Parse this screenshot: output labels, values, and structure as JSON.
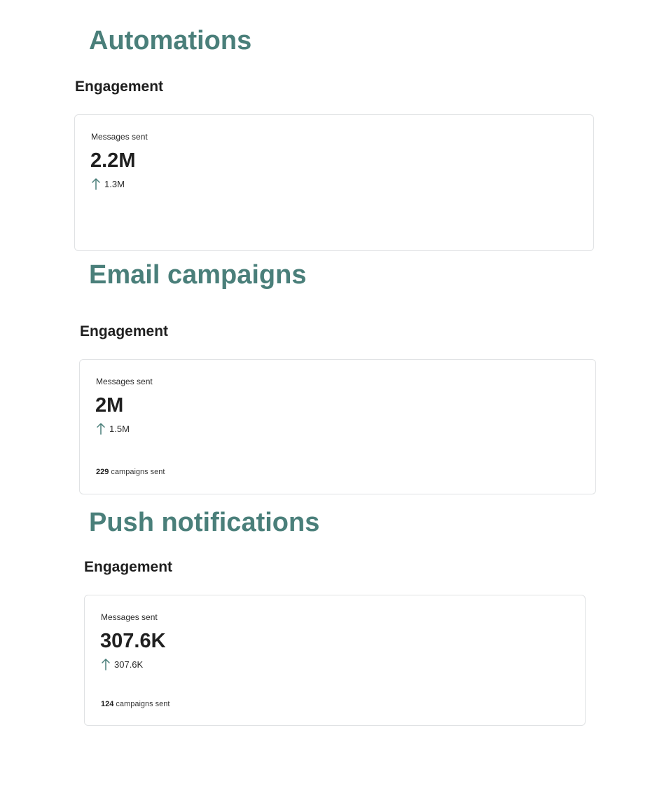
{
  "sections": [
    {
      "title": "Automations",
      "subheading": "Engagement",
      "card": {
        "label": "Messages sent",
        "value": "2.2M",
        "delta": "1.3M",
        "delta_icon": "arrow-up-icon"
      }
    },
    {
      "title": "Email campaigns",
      "subheading": "Engagement",
      "card": {
        "label": "Messages sent",
        "value": "2M",
        "delta": "1.5M",
        "delta_icon": "arrow-up-icon",
        "footer_count": "229",
        "footer_text": "campaigns sent"
      }
    },
    {
      "title": "Push notifications",
      "subheading": "Engagement",
      "card": {
        "label": "Messages sent",
        "value": "307.6K",
        "delta": "307.6K",
        "delta_icon": "arrow-up-icon",
        "footer_count": "124",
        "footer_text": "campaigns sent"
      }
    }
  ],
  "colors": {
    "section_title": "#4a7f7a",
    "arrow": "#4a7f7a",
    "card_border": "#e0e2e4"
  }
}
